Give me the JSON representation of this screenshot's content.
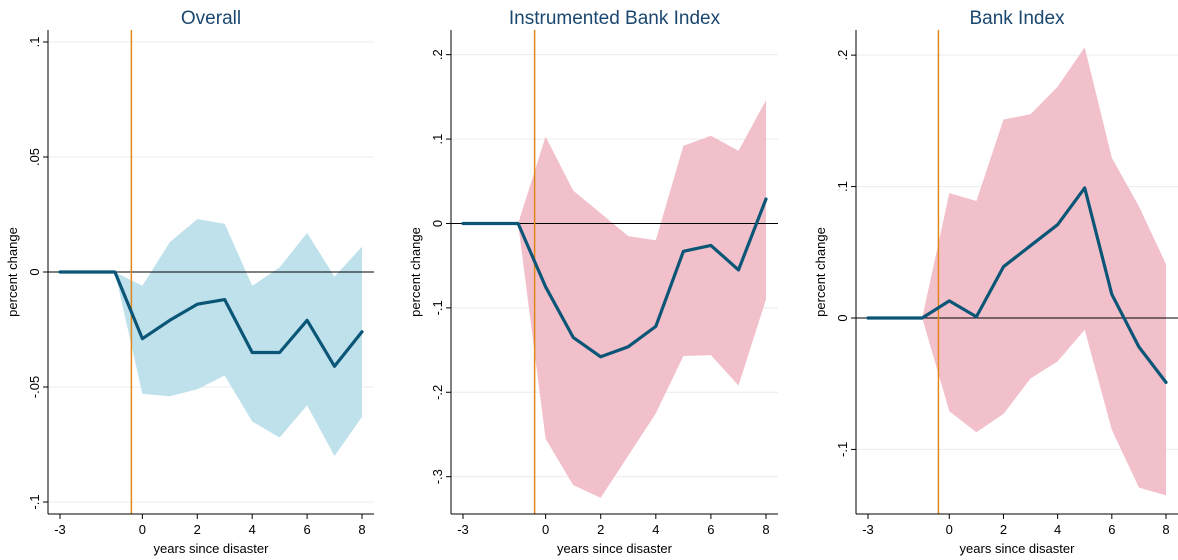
{
  "chart_data": [
    {
      "type": "line",
      "title": "Overall",
      "xlabel": "years since disaster",
      "ylabel": "percent change",
      "xlim": [
        -3,
        8
      ],
      "ylim": [
        -0.1,
        0.1
      ],
      "xticks": [
        -3,
        0,
        2,
        4,
        6,
        8
      ],
      "xtick_labels": [
        "-3",
        "0",
        "2",
        "4",
        "6",
        "8"
      ],
      "yticks": [
        -0.1,
        -0.05,
        0,
        0.05,
        0.1
      ],
      "ytick_labels": [
        "-.1",
        "-.05",
        "0",
        ".05",
        ".1"
      ],
      "event_line_x": -0.4,
      "reference_line_y": 0,
      "grid": true,
      "colors": {
        "line": "#0b5677",
        "band": "#bfe1ec",
        "event": "#e0861a",
        "reference": "#000000"
      },
      "series": [
        {
          "x": [
            -3,
            -2,
            -1,
            0,
            1,
            2,
            3,
            4,
            5,
            6,
            7,
            8
          ],
          "y": [
            0,
            0,
            0,
            -0.029,
            -0.021,
            -0.014,
            -0.012,
            -0.035,
            -0.035,
            -0.021,
            -0.041,
            -0.026
          ],
          "lower": [
            0,
            0,
            0,
            -0.053,
            -0.054,
            -0.051,
            -0.045,
            -0.065,
            -0.072,
            -0.058,
            -0.08,
            -0.063
          ],
          "upper": [
            0,
            0,
            0,
            -0.006,
            0.013,
            0.023,
            0.021,
            -0.006,
            0.002,
            0.017,
            -0.002,
            0.011
          ]
        }
      ]
    },
    {
      "type": "line",
      "title": "Instrumented Bank Index",
      "xlabel": "years since disaster",
      "ylabel": "percent change",
      "xlim": [
        -3,
        8
      ],
      "ylim": [
        -0.33,
        0.215
      ],
      "xticks": [
        -3,
        0,
        2,
        4,
        6,
        8
      ],
      "xtick_labels": [
        "-3",
        "0",
        "2",
        "4",
        "6",
        "8"
      ],
      "yticks": [
        -0.3,
        -0.2,
        -0.1,
        0,
        0.1,
        0.2
      ],
      "ytick_labels": [
        "-.3",
        "-.2",
        "-.1",
        "0",
        ".1",
        ".2"
      ],
      "event_line_x": -0.4,
      "reference_line_y": 0,
      "grid": true,
      "colors": {
        "line": "#0b5677",
        "band": "#f2c0cb",
        "event": "#e0861a",
        "reference": "#000000"
      },
      "series": [
        {
          "x": [
            -3,
            -2,
            -1,
            0,
            1,
            2,
            3,
            4,
            5,
            6,
            7,
            8
          ],
          "y": [
            0,
            0,
            0,
            -0.075,
            -0.135,
            -0.158,
            -0.146,
            -0.122,
            -0.033,
            -0.026,
            -0.055,
            0.029
          ],
          "lower": [
            0,
            0,
            0,
            -0.255,
            -0.31,
            -0.325,
            -0.275,
            -0.225,
            -0.157,
            -0.156,
            -0.192,
            -0.09
          ],
          "upper": [
            0,
            0,
            0,
            0.103,
            0.039,
            0.012,
            -0.015,
            -0.02,
            0.092,
            0.104,
            0.086,
            0.146
          ]
        }
      ]
    },
    {
      "type": "line",
      "title": "Bank Index",
      "xlabel": "years since disaster",
      "ylabel": "percent change",
      "xlim": [
        -3,
        8
      ],
      "ylim": [
        -0.14,
        0.21
      ],
      "xticks": [
        -3,
        0,
        2,
        4,
        6,
        8
      ],
      "xtick_labels": [
        "-3",
        "0",
        "2",
        "4",
        "6",
        "8"
      ],
      "yticks": [
        -0.1,
        0,
        0.1,
        0.2
      ],
      "ytick_labels": [
        "-.1",
        "0",
        ".1",
        ".2"
      ],
      "event_line_x": -0.4,
      "reference_line_y": 0,
      "grid": true,
      "colors": {
        "line": "#0b5677",
        "band": "#f2c0cb",
        "event": "#e0861a",
        "reference": "#000000"
      },
      "series": [
        {
          "x": [
            -3,
            -2,
            -1,
            0,
            1,
            2,
            3,
            4,
            5,
            6,
            7,
            8
          ],
          "y": [
            0,
            0,
            0,
            0.013,
            0.001,
            0.039,
            0.055,
            0.071,
            0.099,
            0.018,
            -0.022,
            -0.049
          ],
          "lower": [
            0,
            0,
            0,
            -0.071,
            -0.087,
            -0.073,
            -0.046,
            -0.033,
            -0.009,
            -0.085,
            -0.129,
            -0.135
          ],
          "upper": [
            0,
            0,
            0,
            0.095,
            0.089,
            0.151,
            0.155,
            0.176,
            0.206,
            0.122,
            0.085,
            0.041
          ]
        }
      ]
    }
  ]
}
